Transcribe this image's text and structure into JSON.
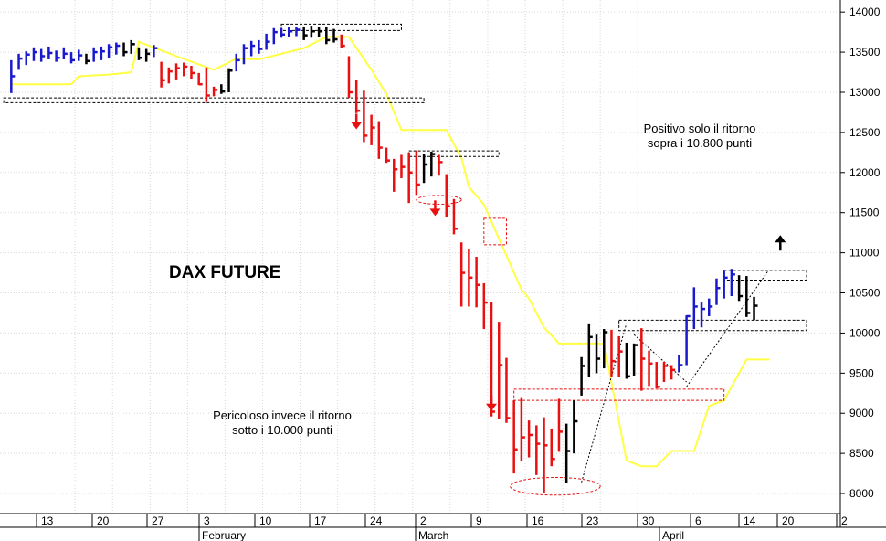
{
  "chart_data": {
    "type": "bar",
    "title": "DAX FUTURE",
    "annotations": {
      "upper": [
        "Positivo solo il ritorno",
        "sopra i 10.800 punti"
      ],
      "lower": [
        "Pericoloso invece il ritorno",
        "sotto i 10.000 punti"
      ]
    },
    "y_ticks": [
      "14000",
      "13500",
      "13000",
      "12500",
      "12000",
      "11500",
      "11000",
      "10500",
      "10000",
      "9500",
      "9000",
      "8500",
      "8000"
    ],
    "ylim": [
      7750,
      14150
    ],
    "x_ticks": [
      "13",
      "20",
      "27",
      "3",
      "10",
      "17",
      "24",
      "2",
      "9",
      "16",
      "23",
      "30",
      "6",
      "14",
      "20",
      "2"
    ],
    "months": [
      "February",
      "March",
      "April"
    ],
    "x_index_range": [
      0,
      110
    ],
    "grid": true,
    "colors": {
      "up": "#1a1acc",
      "down": "#e81010",
      "neutral": "#000000",
      "trail": "#ffff44",
      "marker": "#e81010"
    },
    "bars": [
      [
        0,
        12990,
        13400,
        13200,
        "blue"
      ],
      [
        1,
        13280,
        13480,
        13420,
        "blue"
      ],
      [
        2,
        13340,
        13510,
        13470,
        "blue"
      ],
      [
        3,
        13390,
        13560,
        13500,
        "blue"
      ],
      [
        4,
        13380,
        13540,
        13450,
        "blue"
      ],
      [
        5,
        13410,
        13570,
        13490,
        "blue"
      ],
      [
        6,
        13380,
        13520,
        13430,
        "blue"
      ],
      [
        7,
        13410,
        13560,
        13480,
        "blue"
      ],
      [
        8,
        13360,
        13500,
        13400,
        "blue"
      ],
      [
        9,
        13390,
        13530,
        13460,
        "blue"
      ],
      [
        10,
        13350,
        13480,
        13390,
        "black"
      ],
      [
        11,
        13380,
        13560,
        13500,
        "blue"
      ],
      [
        12,
        13400,
        13570,
        13510,
        "blue"
      ],
      [
        13,
        13430,
        13600,
        13560,
        "blue"
      ],
      [
        14,
        13470,
        13620,
        13580,
        "blue"
      ],
      [
        15,
        13450,
        13620,
        13500,
        "black"
      ],
      [
        16,
        13480,
        13650,
        13600,
        "black"
      ],
      [
        17,
        13400,
        13560,
        13430,
        "black"
      ],
      [
        18,
        13380,
        13540,
        13480,
        "black"
      ],
      [
        19,
        13440,
        13590,
        13550,
        "blue"
      ],
      [
        20,
        13060,
        13380,
        13150,
        "red"
      ],
      [
        21,
        13110,
        13310,
        13260,
        "red"
      ],
      [
        22,
        13160,
        13360,
        13300,
        "red"
      ],
      [
        23,
        13200,
        13370,
        13320,
        "red"
      ],
      [
        24,
        13170,
        13330,
        13240,
        "red"
      ],
      [
        25,
        13090,
        13240,
        13100,
        "red"
      ],
      [
        26,
        12880,
        13310,
        12960,
        "red"
      ],
      [
        27,
        12950,
        13070,
        13030,
        "red"
      ],
      [
        28,
        12980,
        13100,
        13010,
        "black"
      ],
      [
        29,
        13000,
        13300,
        13270,
        "black"
      ],
      [
        30,
        13260,
        13480,
        13400,
        "blue"
      ],
      [
        31,
        13350,
        13600,
        13550,
        "blue"
      ],
      [
        32,
        13450,
        13640,
        13580,
        "blue"
      ],
      [
        33,
        13480,
        13650,
        13540,
        "blue"
      ],
      [
        34,
        13530,
        13730,
        13630,
        "blue"
      ],
      [
        35,
        13600,
        13800,
        13750,
        "blue"
      ],
      [
        36,
        13680,
        13800,
        13720,
        "blue"
      ],
      [
        37,
        13690,
        13810,
        13760,
        "blue"
      ],
      [
        38,
        13700,
        13820,
        13780,
        "blue"
      ],
      [
        39,
        13650,
        13810,
        13710,
        "black"
      ],
      [
        40,
        13680,
        13830,
        13760,
        "black"
      ],
      [
        41,
        13690,
        13810,
        13760,
        "black"
      ],
      [
        42,
        13600,
        13820,
        13650,
        "black"
      ],
      [
        43,
        13620,
        13790,
        13660,
        "black"
      ],
      [
        44,
        13550,
        13720,
        13580,
        "red"
      ],
      [
        45,
        12930,
        13450,
        13000,
        "red"
      ],
      [
        46,
        12740,
        13150,
        12770,
        "red"
      ],
      [
        47,
        12380,
        13020,
        12460,
        "red"
      ],
      [
        48,
        12340,
        12720,
        12560,
        "red"
      ],
      [
        49,
        12170,
        12640,
        12310,
        "red"
      ],
      [
        50,
        12120,
        12310,
        12150,
        "red"
      ],
      [
        51,
        11760,
        12170,
        12040,
        "red"
      ],
      [
        52,
        11930,
        12220,
        12070,
        "red"
      ],
      [
        53,
        11620,
        12250,
        12000,
        "red"
      ],
      [
        54,
        11720,
        12270,
        11850,
        "red"
      ],
      [
        55,
        11870,
        12230,
        12100,
        "black"
      ],
      [
        56,
        11950,
        12260,
        12230,
        "black"
      ],
      [
        57,
        11960,
        12220,
        12130,
        "red"
      ],
      [
        58,
        11450,
        11980,
        11580,
        "red"
      ],
      [
        59,
        11230,
        11670,
        11300,
        "red"
      ],
      [
        60,
        10330,
        11130,
        10750,
        "red"
      ],
      [
        61,
        10330,
        11050,
        10690,
        "red"
      ],
      [
        62,
        10320,
        10950,
        10600,
        "red"
      ],
      [
        63,
        10050,
        10620,
        10380,
        "red"
      ],
      [
        64,
        8960,
        10380,
        9020,
        "red"
      ],
      [
        65,
        8930,
        10140,
        9600,
        "red"
      ],
      [
        66,
        8880,
        9690,
        8940,
        "red"
      ],
      [
        67,
        8250,
        9160,
        8550,
        "red"
      ],
      [
        68,
        8400,
        9200,
        8700,
        "red"
      ],
      [
        69,
        8450,
        8910,
        8730,
        "red"
      ],
      [
        70,
        8230,
        8850,
        8620,
        "red"
      ],
      [
        71,
        8000,
        8950,
        8600,
        "red"
      ],
      [
        72,
        8340,
        8810,
        8430,
        "red"
      ],
      [
        73,
        8520,
        9180,
        8770,
        "red"
      ],
      [
        74,
        8130,
        8870,
        8530,
        "black"
      ],
      [
        75,
        8500,
        9160,
        8900,
        "black"
      ],
      [
        76,
        9220,
        9700,
        9590,
        "black"
      ],
      [
        77,
        9450,
        10120,
        9950,
        "black"
      ],
      [
        78,
        9500,
        9980,
        9680,
        "black"
      ],
      [
        79,
        9560,
        10050,
        10010,
        "black"
      ],
      [
        80,
        9460,
        10040,
        9650,
        "red"
      ],
      [
        81,
        9450,
        9960,
        9770,
        "red"
      ],
      [
        82,
        9430,
        9880,
        9460,
        "black"
      ],
      [
        83,
        9470,
        9870,
        9850,
        "black"
      ],
      [
        84,
        9280,
        10060,
        9680,
        "red"
      ],
      [
        85,
        9340,
        9780,
        9620,
        "red"
      ],
      [
        86,
        9310,
        9640,
        9330,
        "red"
      ],
      [
        87,
        9390,
        9640,
        9590,
        "red"
      ],
      [
        88,
        9420,
        9600,
        9540,
        "red"
      ],
      [
        89,
        9510,
        9730,
        9600,
        "blue"
      ],
      [
        90,
        9600,
        10220,
        10210,
        "blue"
      ],
      [
        91,
        10050,
        10570,
        10330,
        "blue"
      ],
      [
        92,
        10070,
        10380,
        10300,
        "blue"
      ],
      [
        93,
        10210,
        10430,
        10330,
        "blue"
      ],
      [
        94,
        10350,
        10680,
        10560,
        "blue"
      ],
      [
        95,
        10430,
        10770,
        10690,
        "blue"
      ],
      [
        96,
        10460,
        10800,
        10730,
        "blue"
      ],
      [
        97,
        10400,
        10720,
        10460,
        "black"
      ],
      [
        98,
        10200,
        10710,
        10250,
        "black"
      ],
      [
        99,
        10160,
        10450,
        10340,
        "black"
      ]
    ],
    "trail": [
      [
        0,
        13100
      ],
      [
        6,
        13100
      ],
      [
        8,
        13100
      ],
      [
        9,
        13200
      ],
      [
        13,
        13220
      ],
      [
        16,
        13250
      ],
      [
        17,
        13630
      ],
      [
        22,
        13450
      ],
      [
        27,
        13280
      ],
      [
        30,
        13420
      ],
      [
        33,
        13410
      ],
      [
        39,
        13550
      ],
      [
        42,
        13690
      ],
      [
        45,
        13690
      ],
      [
        48,
        13280
      ],
      [
        50,
        12980
      ],
      [
        52,
        12530
      ],
      [
        58,
        12530
      ],
      [
        60,
        12180
      ],
      [
        61,
        11820
      ],
      [
        63,
        11600
      ],
      [
        68,
        10540
      ],
      [
        69,
        10430
      ],
      [
        71,
        10070
      ],
      [
        73,
        9870
      ],
      [
        79,
        9870
      ],
      [
        82,
        8410
      ],
      [
        84,
        8340
      ],
      [
        86,
        8340
      ],
      [
        88,
        8530
      ],
      [
        91,
        8530
      ],
      [
        93,
        9090
      ],
      [
        95,
        9160
      ],
      [
        98,
        9670
      ],
      [
        101,
        9670
      ]
    ],
    "zones": [
      {
        "type": "rect",
        "x0": -1,
        "x1": 55,
        "y0": 12870,
        "y1": 12930,
        "color": "black"
      },
      {
        "type": "rect",
        "x0": 36,
        "x1": 52,
        "y0": 13770,
        "y1": 13850,
        "color": "black"
      },
      {
        "type": "rect",
        "x0": 53,
        "x1": 65,
        "y0": 12200,
        "y1": 12270,
        "color": "black"
      },
      {
        "type": "rect",
        "x0": 81,
        "x1": 106,
        "y0": 10030,
        "y1": 10160,
        "color": "black"
      },
      {
        "type": "rect",
        "x0": 95,
        "x1": 106,
        "y0": 10660,
        "y1": 10780,
        "color": "black"
      },
      {
        "type": "rect",
        "x0": 63,
        "x1": 66,
        "y0": 11100,
        "y1": 11430,
        "color": "red"
      },
      {
        "type": "rect",
        "x0": 67,
        "x1": 95,
        "y0": 9160,
        "y1": 9300,
        "color": "red"
      },
      {
        "type": "ellipse",
        "cx": 57,
        "cy": 11660,
        "rx": 3.0,
        "ry": 55,
        "color": "red"
      },
      {
        "type": "ellipse",
        "cx": 72.5,
        "cy": 8090,
        "rx": 6.0,
        "ry": 110,
        "color": "red"
      }
    ],
    "dotted": [
      [
        [
          76,
          8140
        ],
        [
          82,
          10120
        ]
      ],
      [
        [
          83,
          9980
        ],
        [
          90,
          9390
        ]
      ],
      [
        [
          90,
          9330
        ],
        [
          101,
          10790
        ]
      ]
    ],
    "arrows": [
      {
        "x": 46,
        "y": 12630,
        "dir": "down",
        "color": "red"
      },
      {
        "x": 56.5,
        "y": 11550,
        "dir": "down",
        "color": "red"
      },
      {
        "x": 64,
        "y": 9120,
        "dir": "down",
        "color": "red"
      },
      {
        "x": 102.5,
        "y": 11130,
        "dir": "up",
        "color": "black"
      }
    ]
  }
}
